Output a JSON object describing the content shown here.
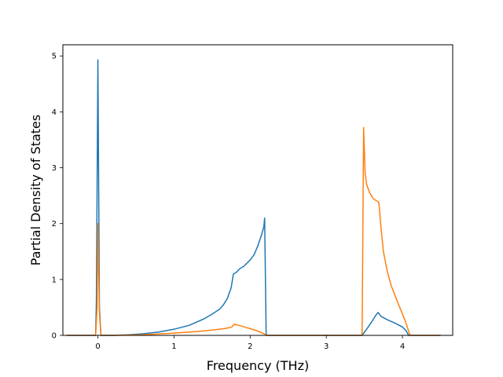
{
  "chart_data": {
    "type": "line",
    "title": "",
    "xlabel": "Frequency (THz)",
    "ylabel": "Partial Density of States",
    "xlim": [
      -0.46,
      4.66
    ],
    "ylim": [
      0,
      5.2
    ],
    "xticks": [
      0,
      1,
      2,
      3,
      4
    ],
    "yticks": [
      0,
      1,
      2,
      3,
      4,
      5
    ],
    "grid": false,
    "legend": "none",
    "series": [
      {
        "color": "#1f77b4",
        "points": [
          [
            -0.41,
            0
          ],
          [
            -0.03,
            0
          ],
          [
            -0.02,
            0.6
          ],
          [
            0.0,
            4.93
          ],
          [
            0.02,
            0.5
          ],
          [
            0.04,
            0
          ],
          [
            0.2,
            0
          ],
          [
            0.4,
            0.01
          ],
          [
            0.6,
            0.03
          ],
          [
            0.8,
            0.06
          ],
          [
            1.0,
            0.11
          ],
          [
            1.2,
            0.18
          ],
          [
            1.4,
            0.3
          ],
          [
            1.5,
            0.38
          ],
          [
            1.6,
            0.47
          ],
          [
            1.65,
            0.55
          ],
          [
            1.7,
            0.66
          ],
          [
            1.75,
            0.85
          ],
          [
            1.78,
            1.1
          ],
          [
            1.82,
            1.13
          ],
          [
            1.86,
            1.19
          ],
          [
            1.92,
            1.24
          ],
          [
            2.0,
            1.35
          ],
          [
            2.05,
            1.44
          ],
          [
            2.1,
            1.6
          ],
          [
            2.15,
            1.8
          ],
          [
            2.18,
            1.95
          ],
          [
            2.19,
            2.1
          ],
          [
            2.21,
            0.02
          ],
          [
            2.22,
            0
          ],
          [
            3.47,
            0
          ],
          [
            3.55,
            0.15
          ],
          [
            3.6,
            0.25
          ],
          [
            3.65,
            0.36
          ],
          [
            3.68,
            0.41
          ],
          [
            3.72,
            0.34
          ],
          [
            3.8,
            0.28
          ],
          [
            3.9,
            0.22
          ],
          [
            4.0,
            0.15
          ],
          [
            4.05,
            0.08
          ],
          [
            4.08,
            0
          ],
          [
            4.5,
            0
          ]
        ]
      },
      {
        "color": "#ff7f0e",
        "points": [
          [
            -0.41,
            0
          ],
          [
            -0.03,
            0
          ],
          [
            -0.01,
            0.5
          ],
          [
            0.0,
            2.0
          ],
          [
            0.02,
            0.4
          ],
          [
            0.04,
            0
          ],
          [
            0.2,
            0
          ],
          [
            0.6,
            0.01
          ],
          [
            1.0,
            0.04
          ],
          [
            1.4,
            0.08
          ],
          [
            1.6,
            0.11
          ],
          [
            1.7,
            0.13
          ],
          [
            1.76,
            0.15
          ],
          [
            1.79,
            0.2
          ],
          [
            1.85,
            0.18
          ],
          [
            1.95,
            0.14
          ],
          [
            2.05,
            0.1
          ],
          [
            2.15,
            0.05
          ],
          [
            2.22,
            0
          ],
          [
            3.47,
            0
          ],
          [
            3.49,
            3.72
          ],
          [
            3.51,
            2.9
          ],
          [
            3.53,
            2.7
          ],
          [
            3.57,
            2.55
          ],
          [
            3.62,
            2.44
          ],
          [
            3.67,
            2.4
          ],
          [
            3.69,
            2.38
          ],
          [
            3.72,
            1.9
          ],
          [
            3.75,
            1.5
          ],
          [
            3.8,
            1.15
          ],
          [
            3.85,
            0.9
          ],
          [
            3.9,
            0.72
          ],
          [
            3.95,
            0.55
          ],
          [
            4.0,
            0.38
          ],
          [
            4.04,
            0.25
          ],
          [
            4.08,
            0.08
          ],
          [
            4.1,
            0
          ],
          [
            4.5,
            0
          ]
        ]
      }
    ]
  }
}
